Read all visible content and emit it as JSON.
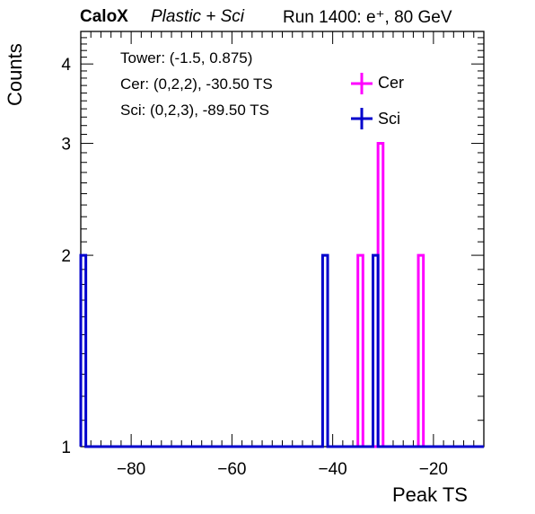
{
  "header": {
    "brand": "CaloX",
    "subtitle": "Plastic + Sci",
    "run": "Run 1400: e⁺, 80 GeV"
  },
  "info": {
    "tower": "Tower: (-1.5, 0.875)",
    "cer": "Cer: (0,2,2), -30.50 TS",
    "sci": "Sci: (0,2,3), -89.50 TS"
  },
  "legend": {
    "cer": "Cer",
    "sci": "Sci"
  },
  "colors": {
    "cer": "#ff00ff",
    "sci": "#0000cc"
  },
  "chart_data": {
    "type": "bar",
    "xlabel": "Peak TS",
    "ylabel": "Counts",
    "xlim": [
      -90,
      -10
    ],
    "ylim": [
      1,
      4.5
    ],
    "ylog": true,
    "grid": false,
    "legend_position": "top-right",
    "xticks": [
      "−80",
      "−60",
      "−40",
      "−20"
    ],
    "yticks": [
      "1",
      "2",
      "3",
      "4"
    ],
    "bin_width": 1,
    "series": [
      {
        "name": "Cer",
        "color": "#ff00ff",
        "bins": [
          {
            "x": -35,
            "count": 2
          },
          {
            "x": -31,
            "count": 3
          },
          {
            "x": -23,
            "count": 2
          }
        ]
      },
      {
        "name": "Sci",
        "color": "#0000cc",
        "bins": [
          {
            "x": -90,
            "count": 2
          },
          {
            "x": -42,
            "count": 2
          },
          {
            "x": -32,
            "count": 2
          }
        ]
      }
    ]
  }
}
